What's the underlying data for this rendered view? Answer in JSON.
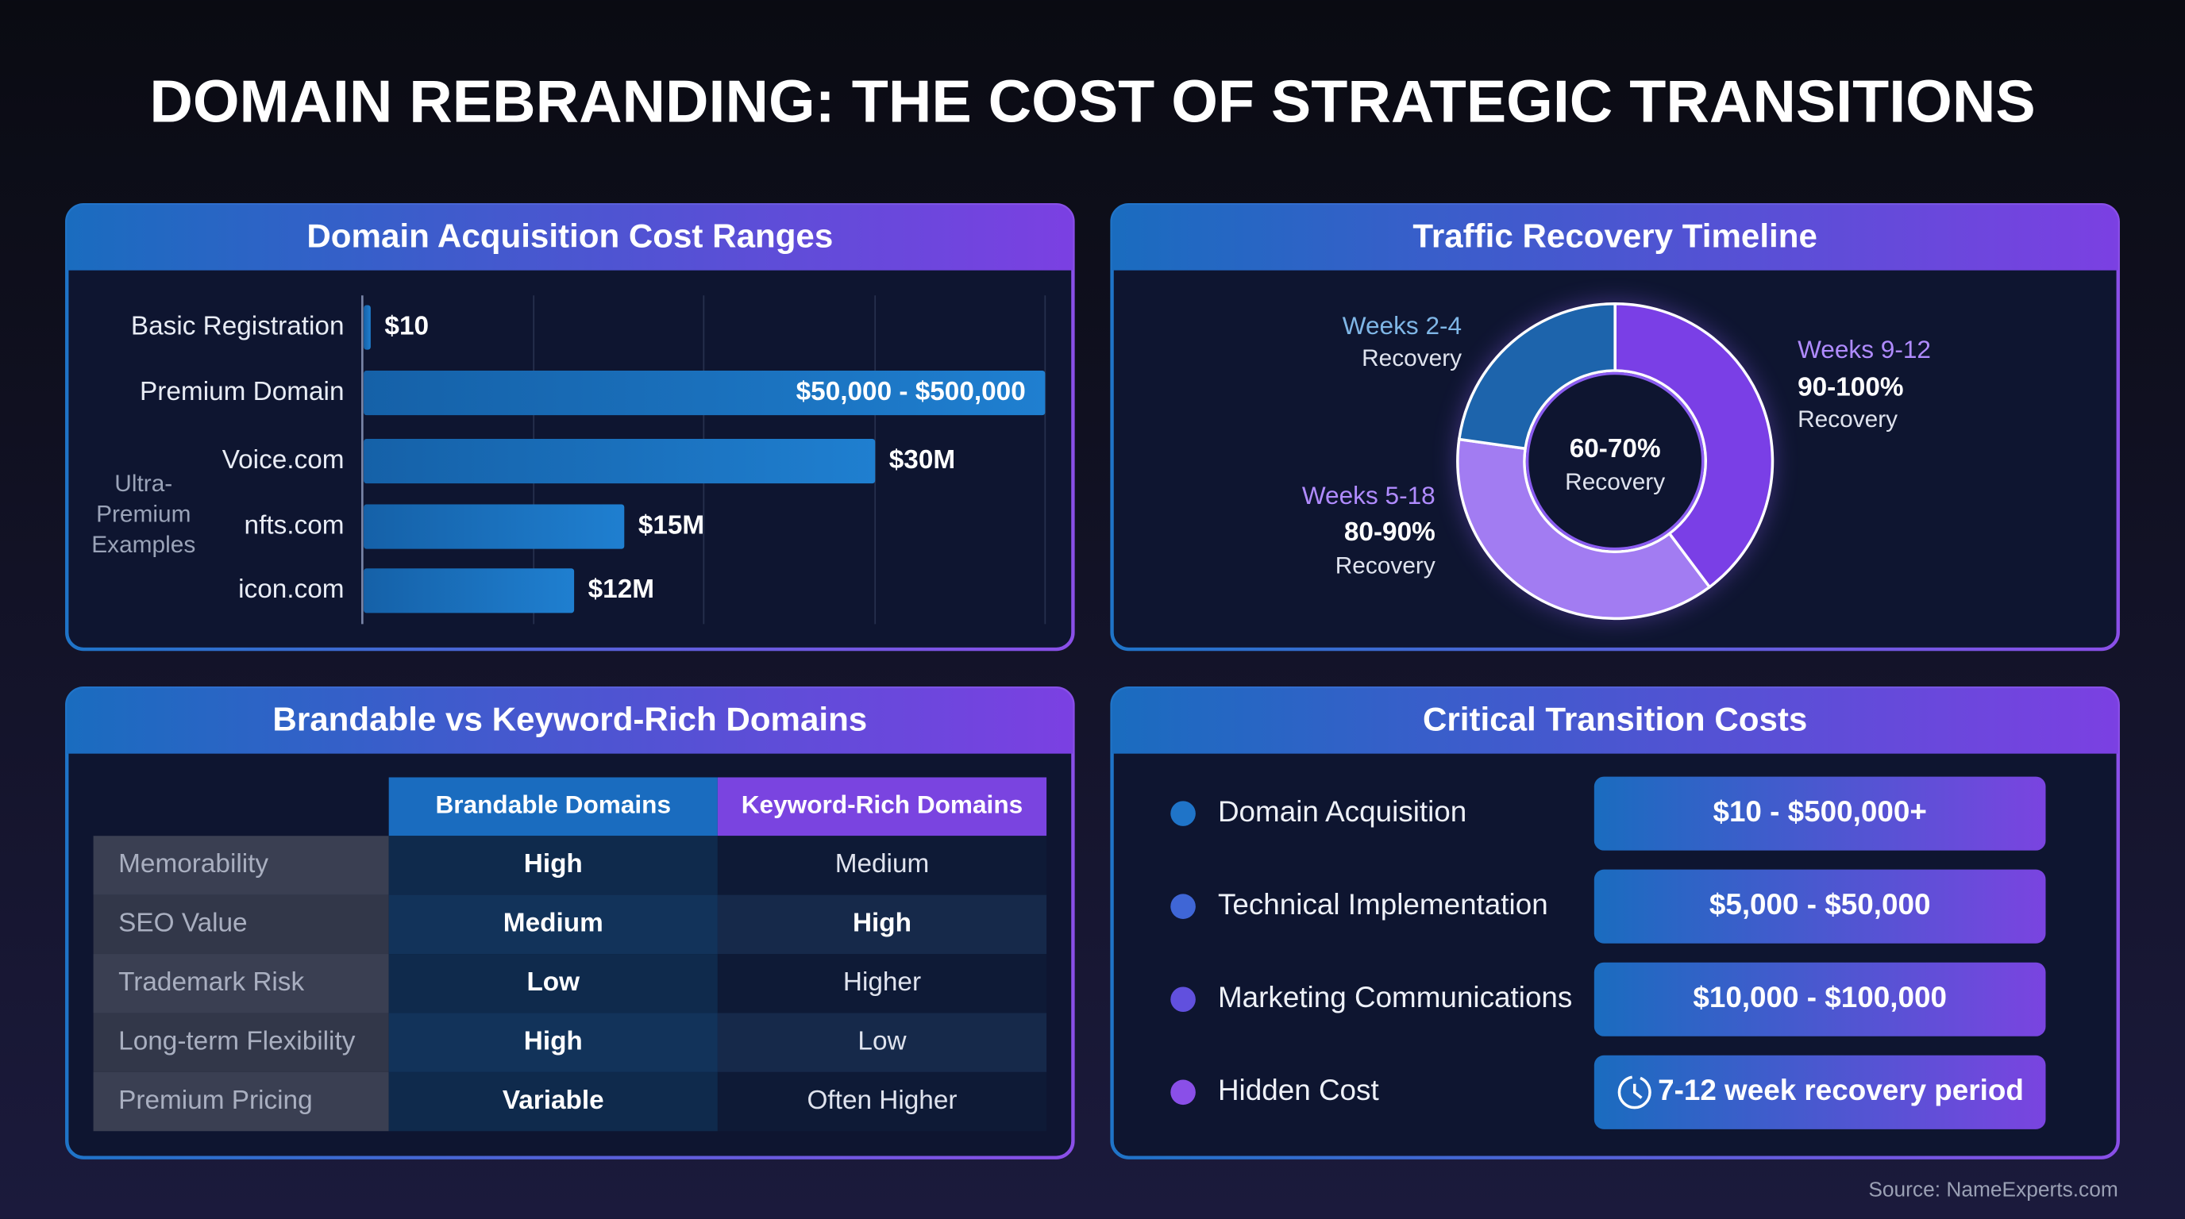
{
  "title": "DOMAIN REBRANDING: THE COST OF STRATEGIC TRANSITIONS",
  "acquisition": {
    "title": "Domain Acquisition Cost Ranges",
    "rows": [
      {
        "label": "Basic Registration",
        "value": "$10"
      },
      {
        "label": "Premium Domain",
        "value": "$50,000 - $500,000"
      },
      {
        "label": "Voice.com",
        "value": "$30M"
      },
      {
        "label": "nfts.com",
        "value": "$15M"
      },
      {
        "label": "icon.com",
        "value": "$12M"
      }
    ],
    "group_label": [
      "Ultra-",
      "Premium",
      "Examples"
    ]
  },
  "traffic": {
    "title": "Traffic Recovery Timeline",
    "center": {
      "value": "60-70%",
      "label": "Recovery"
    },
    "segments": [
      {
        "period": "Weeks 2-4",
        "label": "Recovery"
      },
      {
        "period": "Weeks 9-12",
        "value": "90-100%",
        "label": "Recovery"
      },
      {
        "period": "Weeks 5-18",
        "value": "80-90%",
        "label": "Recovery"
      }
    ]
  },
  "comparison": {
    "title": "Brandable vs Keyword-Rich Domains",
    "columns": [
      "Brandable Domains",
      "Keyword-Rich Domains"
    ],
    "rows": [
      [
        "Memorability",
        "High",
        "Medium"
      ],
      [
        "SEO Value",
        "Medium",
        "High"
      ],
      [
        "Trademark Risk",
        "Low",
        "Higher"
      ],
      [
        "Long-term Flexibility",
        "High",
        "Low"
      ],
      [
        "Premium Pricing",
        "Variable",
        "Often Higher"
      ]
    ]
  },
  "costs": {
    "title": "Critical Transition Costs",
    "items": [
      {
        "label": "Domain Acquisition",
        "value": "$10 - $500,000+"
      },
      {
        "label": "Technical Implementation",
        "value": "$5,000 - $50,000"
      },
      {
        "label": "Marketing Communications",
        "value": "$10,000 - $100,000"
      },
      {
        "label": "Hidden Cost",
        "value": "7-12 week recovery period"
      }
    ]
  },
  "source": "Source: NameExperts.com"
}
